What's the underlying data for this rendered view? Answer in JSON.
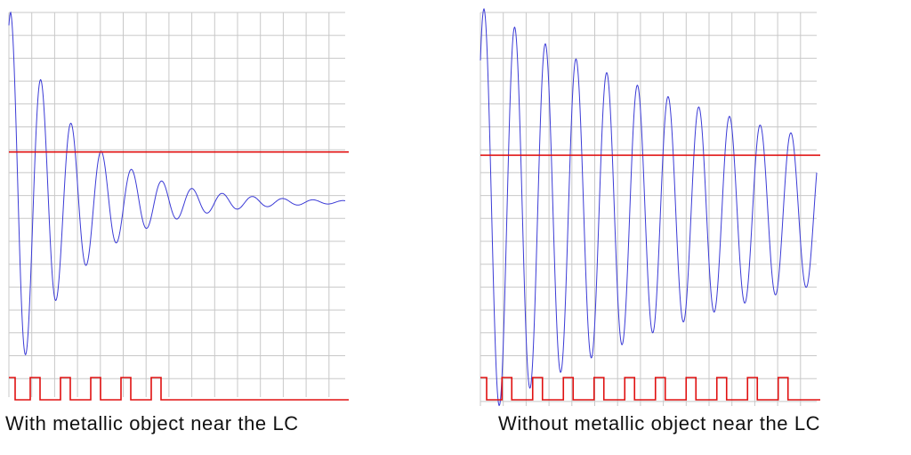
{
  "panels": [
    {
      "id": "with-metal",
      "caption": "With metallic object near the LC",
      "damping": 0.14,
      "pulse_count": 5,
      "threshold_level": 0.37
    },
    {
      "id": "without-metal",
      "caption": "Without metallic object near the LC",
      "damping": 0.03,
      "pulse_count": 10,
      "threshold_level": 0.37
    }
  ],
  "colors": {
    "grid": "#c8c8c8",
    "waveform": "#3b3bd6",
    "threshold": "#e01010",
    "pulses": "#e01010",
    "caption": "#111111"
  }
}
